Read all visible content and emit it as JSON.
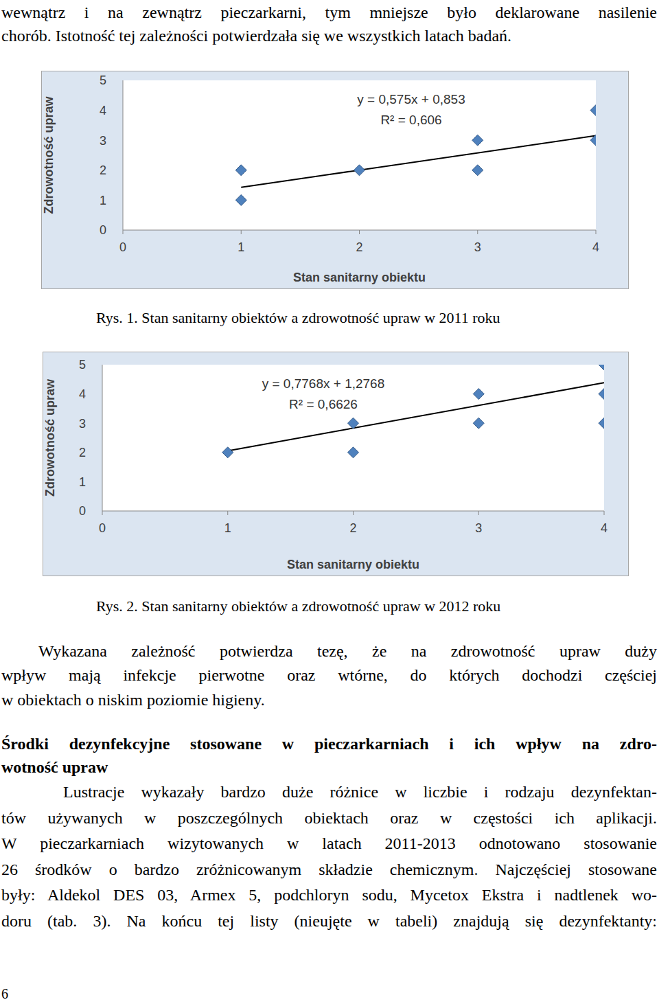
{
  "intro": {
    "lines": [
      "wewnątrz i na zewnątrz pieczarkarni, tym mniejsze było deklarowane nasilenie",
      "chorób. Istotność tej zależności potwierdzała się we wszystkich latach badań."
    ]
  },
  "chart_data": [
    {
      "type": "scatter",
      "caption": "Rys. 1. Stan sanitarny obiektów a zdrowotność upraw w 2011 roku",
      "x_label": "Stan sanitarny obiektu",
      "y_label": "Zdrowotność upraw",
      "x": [
        1,
        1,
        2,
        3,
        3,
        4,
        4
      ],
      "y": [
        2,
        1,
        2,
        3,
        2,
        4,
        3
      ],
      "color": "#4f81bd",
      "marker": "diamond",
      "grid": false,
      "xlim": [
        0,
        4
      ],
      "xticks": [
        0,
        1,
        2,
        3,
        4
      ],
      "ylim": [
        0,
        5
      ],
      "yticks": [
        0,
        1,
        2,
        3,
        4,
        5
      ],
      "trendline": {
        "slope": 0.575,
        "intercept": 0.853,
        "equation": "y = 0,575x + 0,853",
        "r_squared": "R² = 0,606",
        "color": "#000000"
      }
    },
    {
      "type": "scatter",
      "caption": "Rys. 2. Stan sanitarny obiektów a zdrowotność upraw w 2012 roku",
      "x_label": "Stan sanitarny obiektu",
      "y_label": "Zdrowotność upraw",
      "x": [
        1,
        2,
        2,
        3,
        3,
        4,
        4,
        4
      ],
      "y": [
        2,
        3,
        2,
        4,
        3,
        5,
        4,
        3
      ],
      "color": "#4f81bd",
      "marker": "diamond",
      "grid": false,
      "xlim": [
        0,
        4
      ],
      "xticks": [
        0,
        1,
        2,
        3,
        4
      ],
      "ylim": [
        0,
        5
      ],
      "yticks": [
        0,
        1,
        2,
        3,
        4,
        5
      ],
      "trendline": {
        "slope": 0.7768,
        "intercept": 1.2768,
        "equation": "y = 0,7768x + 1,2768",
        "r_squared": "R² = 0,6626",
        "color": "#000000"
      }
    }
  ],
  "paragraph_1": {
    "lines": [
      "Wykazana zależność potwierdza tezę, że na zdrowotność upraw duży",
      "wpływ mają infekcje pierwotne oraz wtórne, do których dochodzi częściej",
      "w obiektach o niskim poziomie higieny."
    ]
  },
  "heading": {
    "lines": [
      "Środki dezynfekcyjne stosowane w pieczarkarniach i ich wpływ na zdro-",
      "wotność upraw"
    ]
  },
  "paragraph_2": {
    "lines": [
      "Lustracje wykazały bardzo duże różnice w liczbie i rodzaju dezynfektan-",
      "tów używanych w poszczególnych obiektach oraz w częstości ich aplikacji.",
      "W pieczarkarniach wizytowanych w latach 2011-2013 odnotowano stosowanie",
      "26 środków o bardzo zróżnicowanym składzie chemicznym. Najczęściej stosowane",
      "były: Aldekol DES 03, Armex 5, podchloryn sodu, Mycetox Ekstra i nadtlenek wo-",
      "doru (tab. 3). Na końcu tej listy (nieujęte w tabeli) znajdują się dezynfektanty:"
    ]
  },
  "page_number": "6"
}
